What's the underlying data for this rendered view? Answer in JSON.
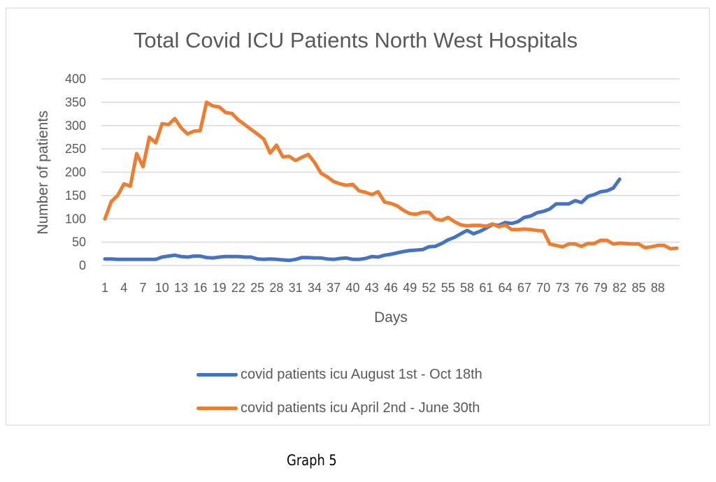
{
  "caption": "Graph 5",
  "chart_data": {
    "type": "line",
    "title": "Total Covid ICU Patients North West Hospitals",
    "xlabel": "Days",
    "ylabel": "Number of patients",
    "ylim": [
      0,
      400
    ],
    "yticks": [
      0,
      50,
      100,
      150,
      200,
      250,
      300,
      350,
      400
    ],
    "xticks": [
      1,
      4,
      7,
      10,
      13,
      16,
      19,
      22,
      25,
      28,
      31,
      34,
      37,
      40,
      43,
      46,
      49,
      52,
      55,
      58,
      61,
      64,
      67,
      70,
      73,
      76,
      79,
      82,
      85,
      88
    ],
    "xlim": [
      1,
      91
    ],
    "grid": "horizontal",
    "legend_position": "bottom",
    "series": [
      {
        "name": "covid patients icu August 1st - Oct 18th",
        "color": "#4472c4",
        "values": [
          14,
          14,
          13,
          13,
          13,
          13,
          13,
          13,
          13,
          18,
          20,
          22,
          19,
          18,
          20,
          20,
          17,
          16,
          18,
          19,
          19,
          19,
          18,
          18,
          14,
          13,
          14,
          13,
          12,
          11,
          13,
          17,
          17,
          16,
          16,
          14,
          13,
          15,
          16,
          13,
          13,
          15,
          19,
          18,
          22,
          24,
          27,
          30,
          32,
          33,
          34,
          40,
          41,
          47,
          55,
          60,
          68,
          75,
          68,
          73,
          80,
          88,
          86,
          92,
          90,
          94,
          103,
          106,
          113,
          116,
          121,
          132,
          132,
          132,
          139,
          135,
          148,
          152,
          158,
          160,
          166,
          185
        ]
      },
      {
        "name": "covid patients icu April 2nd - June 30th",
        "color": "#ed7d31",
        "values": [
          100,
          137,
          150,
          175,
          170,
          240,
          212,
          275,
          263,
          304,
          302,
          315,
          295,
          282,
          288,
          289,
          350,
          342,
          340,
          328,
          326,
          312,
          302,
          292,
          282,
          271,
          241,
          258,
          233,
          234,
          225,
          232,
          238,
          221,
          198,
          190,
          180,
          175,
          172,
          174,
          160,
          157,
          152,
          158,
          136,
          133,
          128,
          118,
          111,
          110,
          114,
          114,
          100,
          97,
          103,
          94,
          87,
          85,
          86,
          86,
          84,
          89,
          83,
          87,
          77,
          77,
          78,
          77,
          75,
          74,
          46,
          43,
          40,
          46,
          46,
          41,
          47,
          47,
          54,
          54,
          46,
          48,
          47,
          46,
          46,
          38,
          40,
          43,
          43,
          36,
          37
        ]
      }
    ]
  }
}
